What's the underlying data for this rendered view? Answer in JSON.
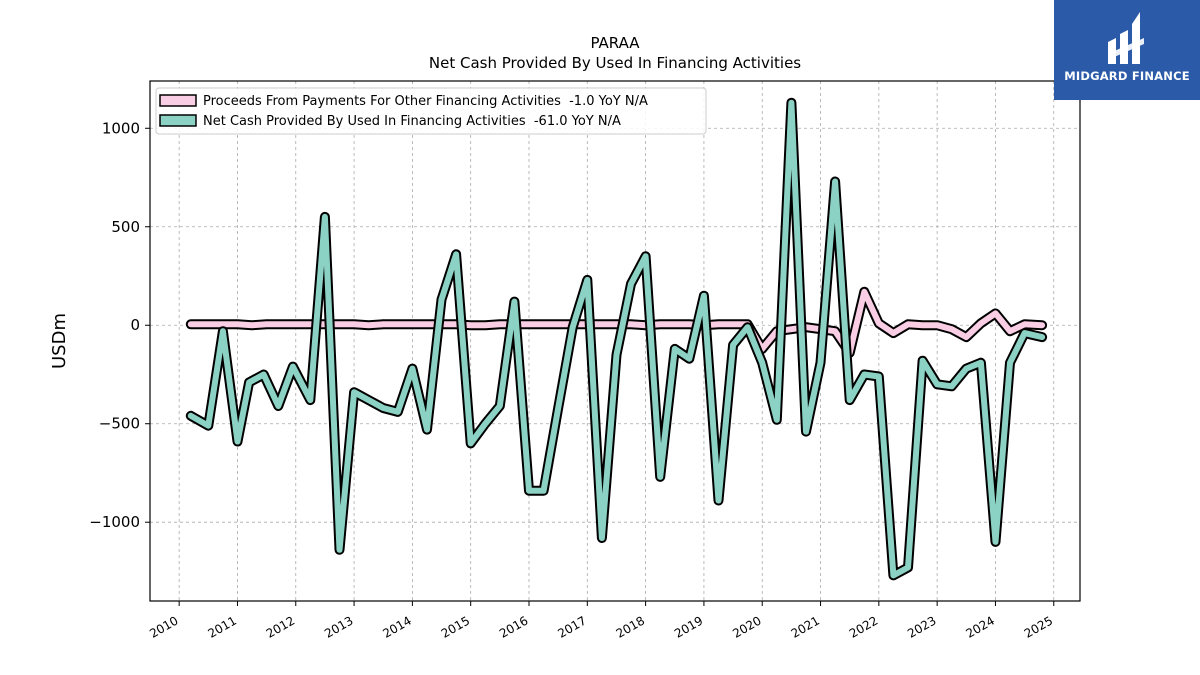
{
  "brand": {
    "name": "MIDGARD FINANCE",
    "bg_color": "#2a5aa8"
  },
  "chart_data": {
    "type": "line",
    "title": "PARAA",
    "subtitle": "Net Cash Provided By Used In Financing Activities",
    "xlabel": "",
    "ylabel": "USDm",
    "xlim": [
      2009.5,
      2025.45
    ],
    "ylim": [
      -1400,
      1240
    ],
    "x_ticks": [
      2010,
      2011,
      2012,
      2013,
      2014,
      2015,
      2016,
      2017,
      2018,
      2019,
      2020,
      2021,
      2022,
      2023,
      2024,
      2025
    ],
    "y_ticks": [
      {
        "value": 1000,
        "label": "1000"
      },
      {
        "value": 500,
        "label": "500"
      },
      {
        "value": 0,
        "label": "0"
      },
      {
        "value": -500,
        "label": "−500"
      },
      {
        "value": -1000,
        "label": "−1000"
      }
    ],
    "grid": true,
    "legend_position": "top-left",
    "series": [
      {
        "name": "Proceeds From Payments For Other Financing Activities  -1.0 YoY N/A",
        "color": "#f9cde3",
        "x": [
          2010.2,
          2010.5,
          2010.7,
          2011.0,
          2011.25,
          2011.5,
          2011.75,
          2012.0,
          2012.25,
          2012.5,
          2012.75,
          2013.0,
          2013.25,
          2013.5,
          2013.75,
          2014.0,
          2014.25,
          2014.5,
          2014.75,
          2015.0,
          2015.25,
          2015.5,
          2015.75,
          2016.0,
          2016.25,
          2016.5,
          2016.75,
          2017.0,
          2017.25,
          2017.5,
          2017.75,
          2018.0,
          2018.25,
          2018.5,
          2018.75,
          2019.0,
          2019.25,
          2019.5,
          2019.75,
          2020.0,
          2020.25,
          2020.5,
          2020.75,
          2021.0,
          2021.25,
          2021.5,
          2021.75,
          2022.0,
          2022.25,
          2022.5,
          2022.75,
          2023.0,
          2023.25,
          2023.5,
          2023.75,
          2024.0,
          2024.25,
          2024.5,
          2024.8
        ],
        "y": [
          5,
          5,
          5,
          5,
          0,
          5,
          5,
          5,
          5,
          5,
          5,
          5,
          0,
          5,
          5,
          5,
          5,
          5,
          5,
          0,
          0,
          5,
          5,
          5,
          5,
          5,
          5,
          5,
          5,
          5,
          5,
          0,
          5,
          5,
          5,
          0,
          5,
          5,
          5,
          -120,
          -30,
          -20,
          -10,
          -20,
          -30,
          -140,
          170,
          10,
          -40,
          5,
          0,
          0,
          -20,
          -60,
          10,
          60,
          -30,
          5,
          0
        ]
      },
      {
        "name": "Net Cash Provided By Used In Financing Activities  -61.0 YoY N/A",
        "color": "#8cd2c4",
        "x": [
          2010.2,
          2010.5,
          2010.75,
          2011.0,
          2011.2,
          2011.45,
          2011.7,
          2011.95,
          2012.25,
          2012.5,
          2012.75,
          2013.0,
          2013.25,
          2013.5,
          2013.75,
          2014.0,
          2014.25,
          2014.5,
          2014.75,
          2015.0,
          2015.25,
          2015.5,
          2015.75,
          2016.0,
          2016.25,
          2016.5,
          2016.75,
          2017.0,
          2017.25,
          2017.5,
          2017.75,
          2018.0,
          2018.25,
          2018.5,
          2018.75,
          2019.0,
          2019.25,
          2019.5,
          2019.75,
          2020.0,
          2020.25,
          2020.5,
          2020.75,
          2021.0,
          2021.25,
          2021.5,
          2021.75,
          2022.0,
          2022.25,
          2022.5,
          2022.75,
          2023.0,
          2023.25,
          2023.5,
          2023.75,
          2024.0,
          2024.25,
          2024.5,
          2024.8
        ],
        "y": [
          -460,
          -510,
          -30,
          -590,
          -290,
          -250,
          -410,
          -210,
          -380,
          550,
          -1140,
          -340,
          -380,
          -420,
          -440,
          -220,
          -530,
          130,
          360,
          -600,
          -500,
          -410,
          120,
          -840,
          -840,
          -420,
          -10,
          230,
          -1080,
          -150,
          210,
          350,
          -770,
          -120,
          -170,
          150,
          -890,
          -100,
          -10,
          -190,
          -480,
          1130,
          -540,
          -190,
          730,
          -380,
          -250,
          -260,
          -1270,
          -1230,
          -180,
          -300,
          -310,
          -220,
          -190,
          -1100,
          -190,
          -40,
          -60
        ]
      }
    ]
  }
}
